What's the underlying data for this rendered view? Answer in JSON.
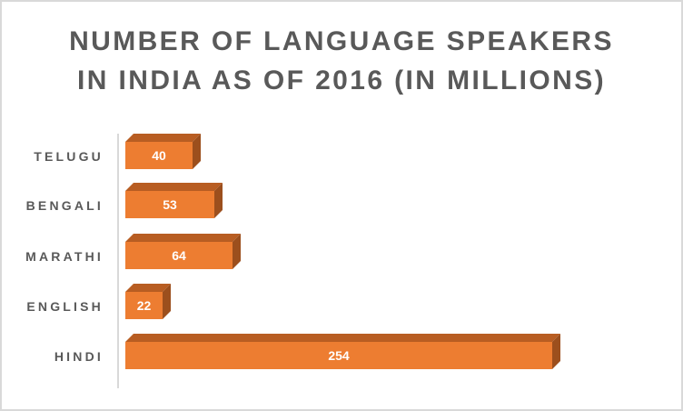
{
  "chart_data": {
    "type": "bar",
    "orientation": "horizontal",
    "style": "3d-clustered-bar",
    "title": "NUMBER OF LANGUAGE SPEAKERS IN INDIA AS OF 2016 (IN MILLIONS)",
    "title_lines": [
      "NUMBER OF LANGUAGE SPEAKERS",
      "IN INDIA AS OF 2016 (IN MILLIONS)"
    ],
    "categories": [
      "TELUGU",
      "BENGALI",
      "MARATHI",
      "ENGLISH",
      "HINDI"
    ],
    "values": [
      40,
      53,
      64,
      22,
      254
    ],
    "value_labels": [
      "40",
      "53",
      "64",
      "22",
      "254"
    ],
    "xlabel": "",
    "ylabel": "",
    "grid": false,
    "legend": null,
    "data_labels": true,
    "colors": {
      "bar_front": "#ed7d31",
      "bar_top": "#b85d22",
      "bar_side": "#9c4f1d",
      "title": "#595959",
      "labels": "#595959",
      "axis": "#d9d9d9",
      "border": "#d9d9d9"
    }
  }
}
